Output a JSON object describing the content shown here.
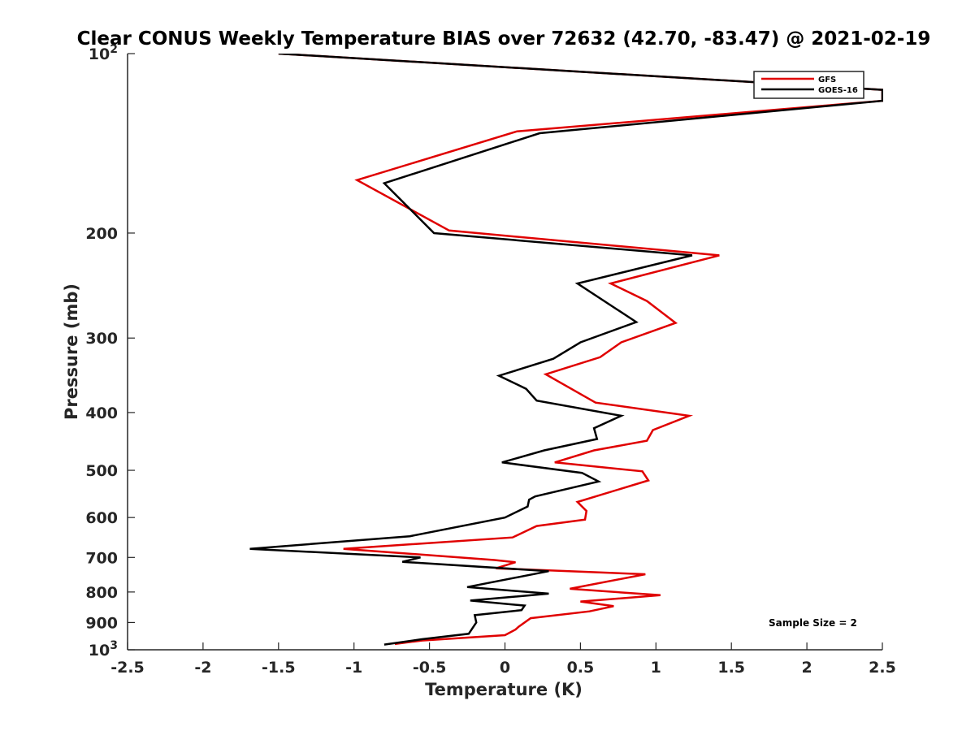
{
  "chart_data": {
    "type": "line",
    "title": "Clear CONUS Weekly Temperature BIAS over 72632 (42.70, -83.47) @ 2021-02-19",
    "xlabel": "Temperature (K)",
    "ylabel": "Pressure (mb)",
    "xlim": [
      -2.5,
      2.5
    ],
    "ylim": [
      100,
      1000
    ],
    "y_scale": "log",
    "y_reversed": true,
    "grid": false,
    "legend_position": "top-right",
    "x_ticks": [
      "-2.5",
      "-2",
      "-1.5",
      "-1",
      "-0.5",
      "0",
      "0.5",
      "1",
      "1.5",
      "2",
      "2.5"
    ],
    "y_ticks": [
      {
        "value": 100,
        "label": "10",
        "sup": "2"
      },
      {
        "value": 200,
        "label": "200",
        "sup": ""
      },
      {
        "value": 300,
        "label": "300",
        "sup": ""
      },
      {
        "value": 400,
        "label": "400",
        "sup": ""
      },
      {
        "value": 500,
        "label": "500",
        "sup": ""
      },
      {
        "value": 600,
        "label": "600",
        "sup": ""
      },
      {
        "value": 700,
        "label": "700",
        "sup": ""
      },
      {
        "value": 800,
        "label": "800",
        "sup": ""
      },
      {
        "value": 900,
        "label": "900",
        "sup": ""
      },
      {
        "value": 1000,
        "label": "10",
        "sup": "3"
      }
    ],
    "annotation": "Sample Size = 2",
    "series": [
      {
        "name": "GFS",
        "color": "#e00000",
        "points": [
          {
            "x": -1.5,
            "p": 100
          },
          {
            "x": 2.5,
            "p": 115
          },
          {
            "x": 2.5,
            "p": 120
          },
          {
            "x": 0.08,
            "p": 135
          },
          {
            "x": -0.98,
            "p": 163
          },
          {
            "x": -0.37,
            "p": 198
          },
          {
            "x": 1.42,
            "p": 218
          },
          {
            "x": 0.7,
            "p": 243
          },
          {
            "x": 0.94,
            "p": 260
          },
          {
            "x": 1.13,
            "p": 283
          },
          {
            "x": 0.77,
            "p": 305
          },
          {
            "x": 0.63,
            "p": 323
          },
          {
            "x": 0.27,
            "p": 345
          },
          {
            "x": 0.6,
            "p": 385
          },
          {
            "x": 1.22,
            "p": 405
          },
          {
            "x": 0.98,
            "p": 428
          },
          {
            "x": 0.94,
            "p": 446
          },
          {
            "x": 0.59,
            "p": 463
          },
          {
            "x": 0.33,
            "p": 485
          },
          {
            "x": 0.91,
            "p": 502
          },
          {
            "x": 0.95,
            "p": 520
          },
          {
            "x": 0.48,
            "p": 565
          },
          {
            "x": 0.54,
            "p": 585
          },
          {
            "x": 0.53,
            "p": 605
          },
          {
            "x": 0.21,
            "p": 620
          },
          {
            "x": 0.05,
            "p": 648
          },
          {
            "x": -1.07,
            "p": 677
          },
          {
            "x": -0.07,
            "p": 707
          },
          {
            "x": 0.07,
            "p": 713
          },
          {
            "x": -0.06,
            "p": 730
          },
          {
            "x": 0.93,
            "p": 747
          },
          {
            "x": 0.43,
            "p": 790
          },
          {
            "x": 1.03,
            "p": 810
          },
          {
            "x": 0.5,
            "p": 830
          },
          {
            "x": 0.72,
            "p": 845
          },
          {
            "x": 0.56,
            "p": 862
          },
          {
            "x": 0.17,
            "p": 885
          },
          {
            "x": 0.09,
            "p": 915
          },
          {
            "x": 0.07,
            "p": 925
          },
          {
            "x": 0.0,
            "p": 945
          },
          {
            "x": -0.55,
            "p": 965
          },
          {
            "x": -0.73,
            "p": 978
          }
        ]
      },
      {
        "name": "GOES-16",
        "color": "#000000",
        "points": [
          {
            "x": -1.5,
            "p": 100
          },
          {
            "x": 2.5,
            "p": 115
          },
          {
            "x": 2.5,
            "p": 120
          },
          {
            "x": 0.23,
            "p": 136
          },
          {
            "x": -0.8,
            "p": 165
          },
          {
            "x": -0.47,
            "p": 200
          },
          {
            "x": 1.24,
            "p": 218
          },
          {
            "x": 0.48,
            "p": 243
          },
          {
            "x": 0.87,
            "p": 282
          },
          {
            "x": 0.5,
            "p": 305
          },
          {
            "x": 0.32,
            "p": 325
          },
          {
            "x": -0.04,
            "p": 347
          },
          {
            "x": 0.14,
            "p": 365
          },
          {
            "x": 0.21,
            "p": 382
          },
          {
            "x": 0.77,
            "p": 405
          },
          {
            "x": 0.59,
            "p": 425
          },
          {
            "x": 0.61,
            "p": 443
          },
          {
            "x": 0.26,
            "p": 463
          },
          {
            "x": -0.02,
            "p": 485
          },
          {
            "x": 0.51,
            "p": 505
          },
          {
            "x": 0.62,
            "p": 522
          },
          {
            "x": 0.2,
            "p": 553
          },
          {
            "x": 0.16,
            "p": 560
          },
          {
            "x": 0.15,
            "p": 575
          },
          {
            "x": 0.0,
            "p": 600
          },
          {
            "x": -0.63,
            "p": 645
          },
          {
            "x": -1.69,
            "p": 677
          },
          {
            "x": -0.56,
            "p": 700
          },
          {
            "x": -0.68,
            "p": 712
          },
          {
            "x": 0.29,
            "p": 738
          },
          {
            "x": -0.25,
            "p": 785
          },
          {
            "x": 0.29,
            "p": 805
          },
          {
            "x": -0.23,
            "p": 827
          },
          {
            "x": 0.13,
            "p": 843
          },
          {
            "x": 0.11,
            "p": 858
          },
          {
            "x": -0.2,
            "p": 875
          },
          {
            "x": -0.19,
            "p": 900
          },
          {
            "x": -0.24,
            "p": 940
          },
          {
            "x": -0.55,
            "p": 960
          },
          {
            "x": -0.8,
            "p": 980
          }
        ]
      }
    ]
  }
}
